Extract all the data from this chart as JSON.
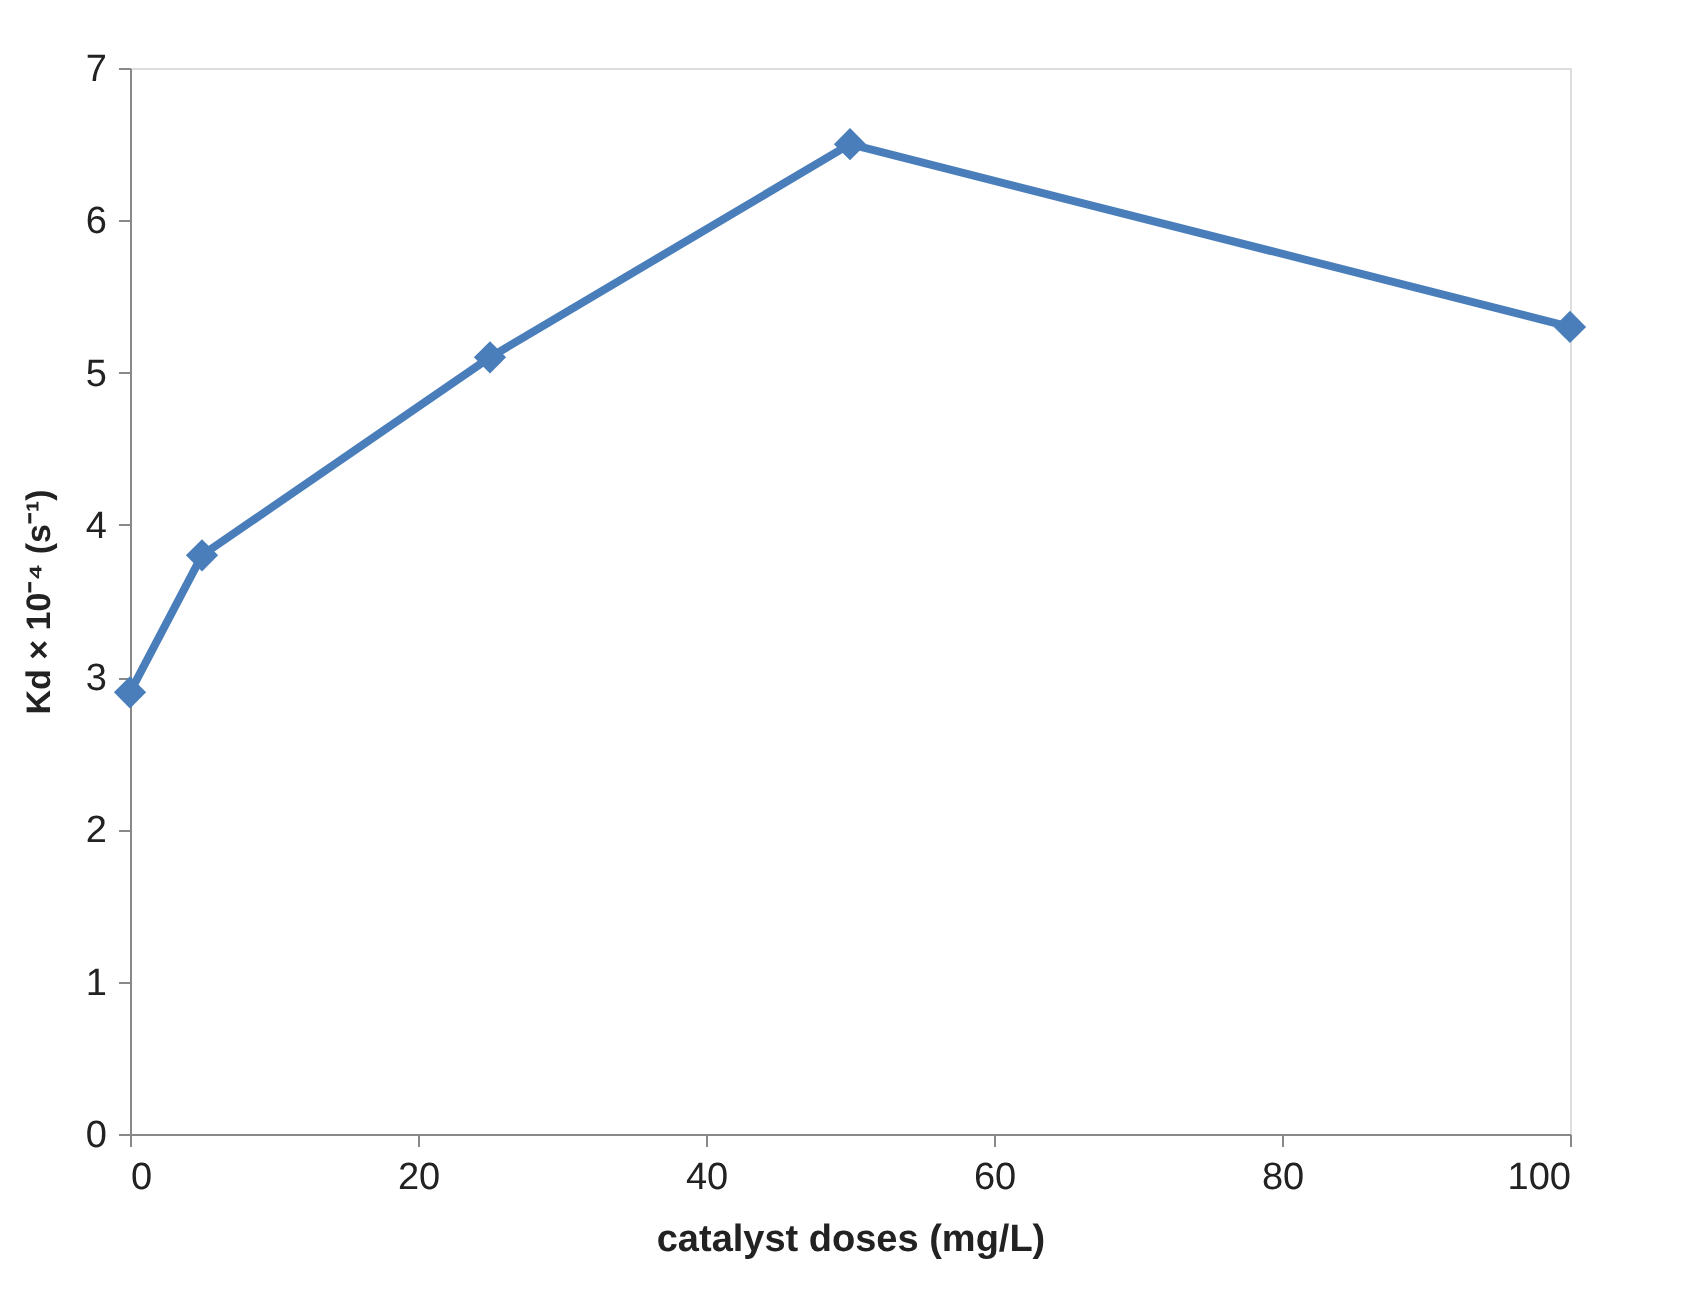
{
  "chart_data": {
    "type": "line",
    "xlabel": "catalyst doses (mg/L)",
    "ylabel": "Kd × 10⁻⁴ (s⁻¹)",
    "x": [
      0,
      5,
      25,
      50,
      100
    ],
    "series": [
      {
        "color": "#4a7ebb",
        "values": [
          2.9,
          3.8,
          5.1,
          6.5,
          5.3
        ]
      }
    ],
    "xlim": [
      0,
      100
    ],
    "xticks": [
      0,
      20,
      40,
      60,
      80,
      100
    ],
    "ylim": [
      0,
      7
    ],
    "yticks": [
      0,
      1,
      2,
      3,
      4,
      5,
      6,
      7
    ],
    "grid": false,
    "marker": "diamond",
    "line_style": "solid"
  }
}
